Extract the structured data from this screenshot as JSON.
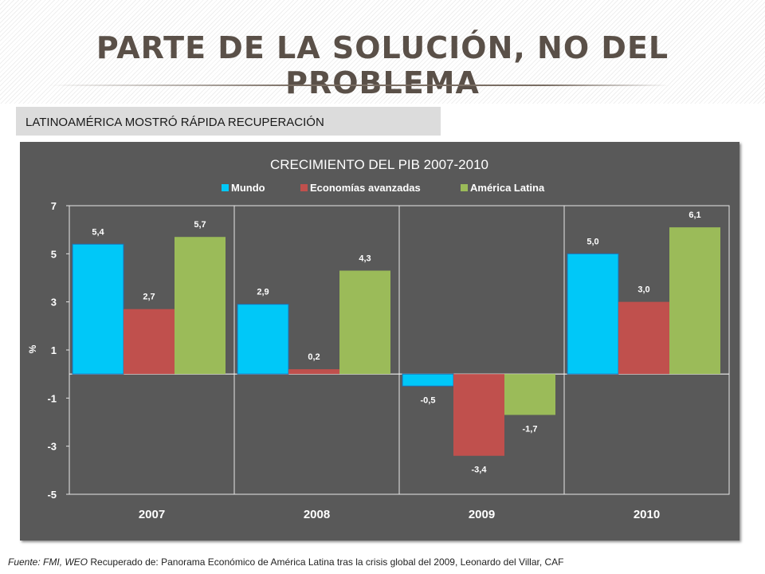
{
  "slide": {
    "title": "Parte de la solución, no del problema",
    "subtitle": "LATINOAMÉRICA MOSTRÓ RÁPIDA RECUPERACIÓN",
    "footer": {
      "source_label": "Fuente: FMI, WEO",
      "source_text": "Recuperado de: Panorama Económico de América Latina tras la crisis global del 2009, Leonardo del Villar, CAF"
    }
  },
  "chart_data": {
    "type": "bar",
    "title": "CRECIMIENTO DEL PIB 2007-2010",
    "ylabel": "%",
    "xlabel": "",
    "categories": [
      "2007",
      "2008",
      "2009",
      "2010"
    ],
    "series": [
      {
        "name": "Mundo",
        "color": "#00c8f8",
        "values": [
          5.4,
          2.9,
          -0.5,
          5.0
        ],
        "labels": [
          "5,4",
          "2,9",
          "-0,5",
          "5,0"
        ]
      },
      {
        "name": "Economías avanzadas",
        "color": "#c0504d",
        "values": [
          2.7,
          0.2,
          -3.4,
          3.0
        ],
        "labels": [
          "2,7",
          "0,2",
          "-3,4",
          "3,0"
        ]
      },
      {
        "name": "América Latina",
        "color": "#9bbb59",
        "values": [
          5.7,
          4.3,
          -1.7,
          6.1
        ],
        "labels": [
          "5,7",
          "4,3",
          "-1,7",
          "6,1"
        ]
      }
    ],
    "ylim": [
      -5,
      7
    ],
    "yticks": [
      7,
      5,
      3,
      1,
      -1,
      -3,
      -5
    ],
    "ytick_labels": [
      "7",
      "5",
      "3",
      "1",
      "-1",
      "-3",
      "-5"
    ],
    "grid": true,
    "legend": "top-center",
    "background": "#595959"
  }
}
